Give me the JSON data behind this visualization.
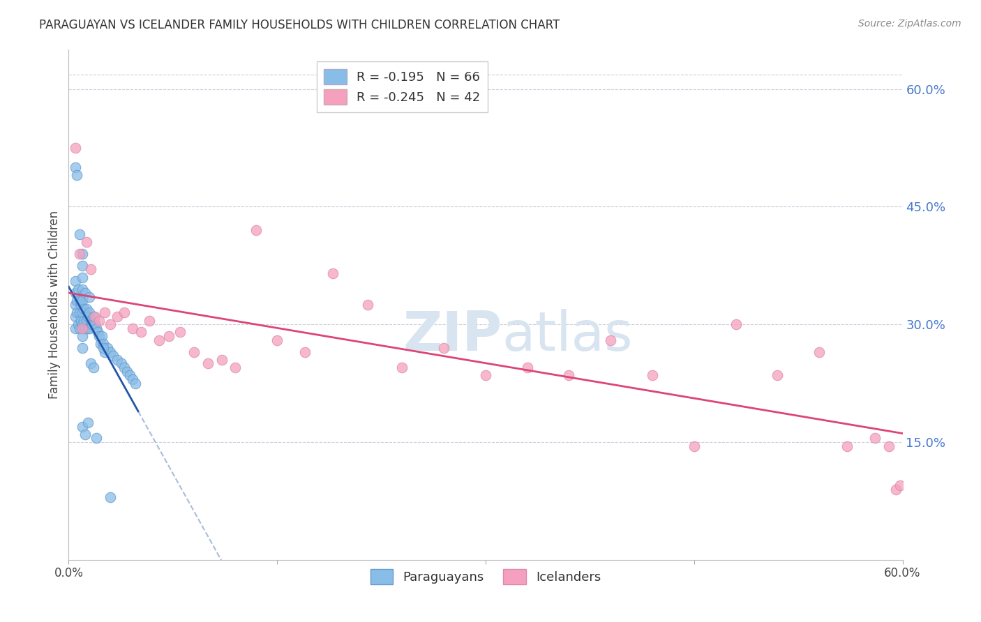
{
  "title": "PARAGUAYAN VS ICELANDER FAMILY HOUSEHOLDS WITH CHILDREN CORRELATION CHART",
  "source": "Source: ZipAtlas.com",
  "ylabel": "Family Households with Children",
  "right_ytick_labels": [
    "60.0%",
    "45.0%",
    "30.0%",
    "15.0%"
  ],
  "right_ytick_values": [
    0.6,
    0.45,
    0.3,
    0.15
  ],
  "xlim": [
    0.0,
    0.6
  ],
  "ylim": [
    0.0,
    0.65
  ],
  "paraguayan_color": "#88bde8",
  "paraguayan_edge_color": "#6699cc",
  "icelander_color": "#f5a0be",
  "icelander_edge_color": "#dd88aa",
  "paraguayan_line_color": "#2255aa",
  "icelander_line_color": "#dd4477",
  "dashed_line_color": "#aabbdd",
  "title_color": "#333333",
  "right_axis_color": "#4477cc",
  "watermark_color": "#d8e4f0",
  "paraguayans_x": [
    0.005,
    0.005,
    0.005,
    0.005,
    0.005,
    0.006,
    0.006,
    0.007,
    0.007,
    0.008,
    0.008,
    0.008,
    0.009,
    0.009,
    0.01,
    0.01,
    0.01,
    0.01,
    0.01,
    0.01,
    0.01,
    0.01,
    0.01,
    0.011,
    0.011,
    0.012,
    0.012,
    0.013,
    0.013,
    0.014,
    0.014,
    0.015,
    0.015,
    0.015,
    0.016,
    0.017,
    0.018,
    0.019,
    0.02,
    0.021,
    0.022,
    0.023,
    0.024,
    0.025,
    0.026,
    0.028,
    0.03,
    0.032,
    0.035,
    0.038,
    0.04,
    0.042,
    0.044,
    0.046,
    0.048,
    0.005,
    0.006,
    0.008,
    0.01,
    0.012,
    0.014,
    0.016,
    0.018,
    0.02,
    0.025,
    0.03
  ],
  "paraguayans_y": [
    0.355,
    0.34,
    0.325,
    0.31,
    0.295,
    0.33,
    0.315,
    0.345,
    0.3,
    0.33,
    0.315,
    0.295,
    0.325,
    0.305,
    0.39,
    0.375,
    0.36,
    0.345,
    0.33,
    0.315,
    0.3,
    0.285,
    0.27,
    0.32,
    0.305,
    0.34,
    0.295,
    0.32,
    0.305,
    0.31,
    0.295,
    0.335,
    0.315,
    0.295,
    0.305,
    0.3,
    0.31,
    0.3,
    0.295,
    0.29,
    0.285,
    0.275,
    0.285,
    0.275,
    0.265,
    0.27,
    0.265,
    0.26,
    0.255,
    0.25,
    0.245,
    0.24,
    0.235,
    0.23,
    0.225,
    0.5,
    0.49,
    0.415,
    0.17,
    0.16,
    0.175,
    0.25,
    0.245,
    0.155,
    0.27,
    0.08
  ],
  "icelanders_x": [
    0.005,
    0.008,
    0.01,
    0.013,
    0.016,
    0.019,
    0.022,
    0.026,
    0.03,
    0.035,
    0.04,
    0.046,
    0.052,
    0.058,
    0.065,
    0.072,
    0.08,
    0.09,
    0.1,
    0.11,
    0.12,
    0.135,
    0.15,
    0.17,
    0.19,
    0.215,
    0.24,
    0.27,
    0.3,
    0.33,
    0.36,
    0.39,
    0.42,
    0.45,
    0.48,
    0.51,
    0.54,
    0.56,
    0.58,
    0.59,
    0.595,
    0.598
  ],
  "icelanders_y": [
    0.525,
    0.39,
    0.295,
    0.405,
    0.37,
    0.31,
    0.305,
    0.315,
    0.3,
    0.31,
    0.315,
    0.295,
    0.29,
    0.305,
    0.28,
    0.285,
    0.29,
    0.265,
    0.25,
    0.255,
    0.245,
    0.42,
    0.28,
    0.265,
    0.365,
    0.325,
    0.245,
    0.27,
    0.235,
    0.245,
    0.235,
    0.28,
    0.235,
    0.145,
    0.3,
    0.235,
    0.265,
    0.145,
    0.155,
    0.145,
    0.09,
    0.095
  ],
  "legend_R_blue": "R = -0.195",
  "legend_N_blue": "N = 66",
  "legend_R_pink": "R = -0.245",
  "legend_N_pink": "N = 42"
}
